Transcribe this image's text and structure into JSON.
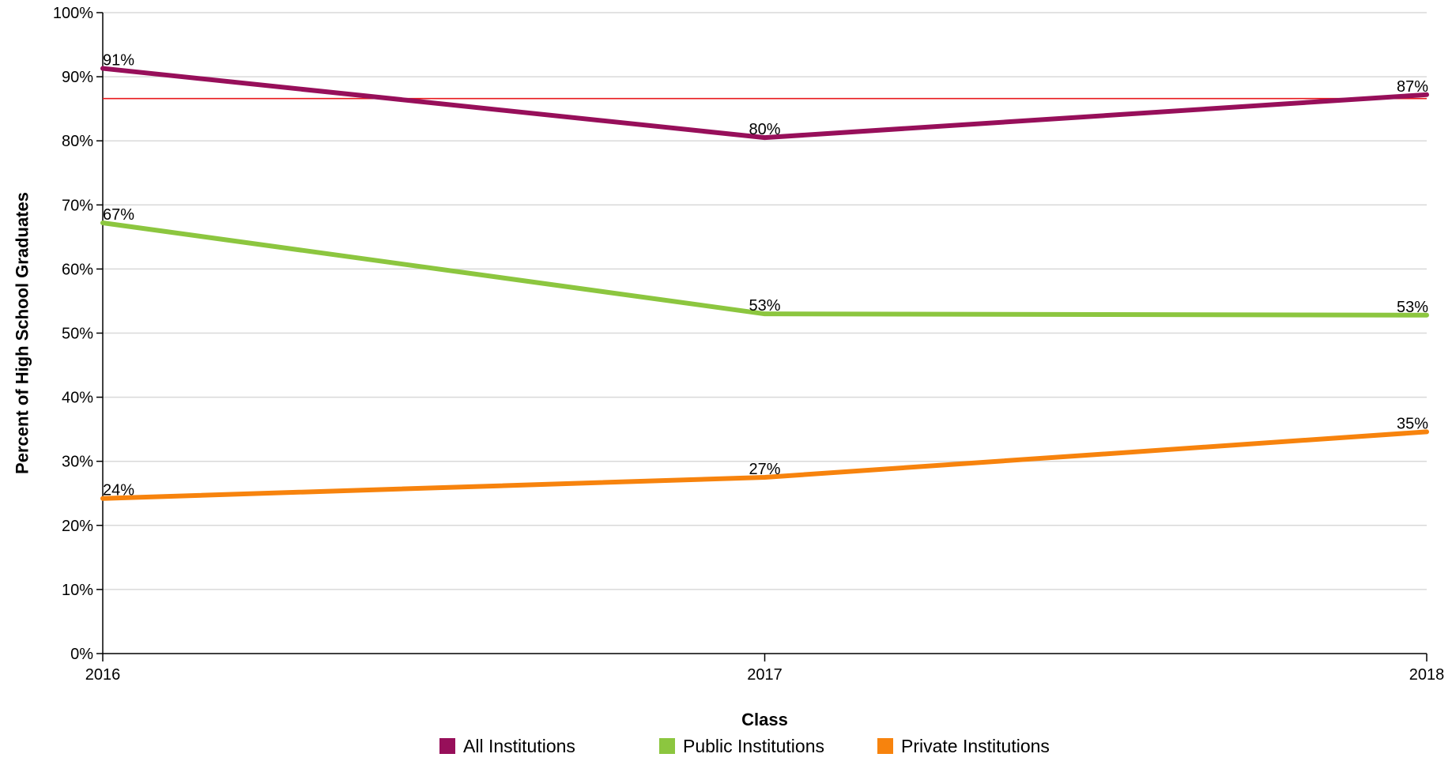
{
  "chart_data": {
    "type": "line",
    "title": "",
    "xlabel": "Class",
    "ylabel": "Percent of High School Graduates",
    "categories": [
      "2016",
      "2017",
      "2018"
    ],
    "y_ticks": [
      "0%",
      "10%",
      "20%",
      "30%",
      "40%",
      "50%",
      "60%",
      "70%",
      "80%",
      "90%",
      "100%"
    ],
    "ylim": [
      0,
      100
    ],
    "grid": true,
    "legend_position": "bottom",
    "series": [
      {
        "name": "All Institutions",
        "color": "#970F5A",
        "values": [
          91.3,
          80.5,
          87.2
        ],
        "labels": [
          "91%",
          "80%",
          "87%"
        ]
      },
      {
        "name": "Public Institutions",
        "color": "#8CC63F",
        "values": [
          67.2,
          53.0,
          52.8
        ],
        "labels": [
          "67%",
          "53%",
          "53%"
        ]
      },
      {
        "name": "Private Institutions",
        "color": "#F7830D",
        "values": [
          24.2,
          27.5,
          34.6
        ],
        "labels": [
          "24%",
          "27%",
          "35%"
        ]
      }
    ],
    "reference_line": {
      "value": 86.6,
      "color": "#E8191E"
    }
  }
}
